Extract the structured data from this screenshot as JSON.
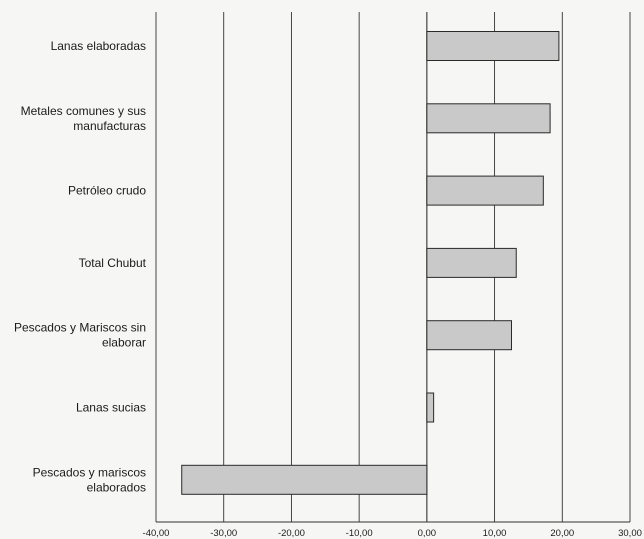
{
  "chart_data": {
    "type": "bar",
    "orientation": "horizontal",
    "categories": [
      [
        "Lanas elaboradas"
      ],
      [
        "Metales comunes y sus",
        "manufacturas"
      ],
      [
        "Petróleo crudo"
      ],
      [
        "Total Chubut"
      ],
      [
        "Pescados y Mariscos sin",
        "elaborar"
      ],
      [
        "Lanas sucias"
      ],
      [
        "Pescados y mariscos",
        "elaborados"
      ]
    ],
    "values": [
      19.5,
      18.2,
      17.2,
      13.2,
      12.5,
      1.0,
      -36.2
    ],
    "xlim": [
      -40,
      30
    ],
    "xticks": [
      -40,
      -30,
      -20,
      -10,
      0,
      10,
      20,
      30
    ],
    "xtick_labels": [
      "-40,00",
      "-30,00",
      "-20,00",
      "-10,00",
      "0,00",
      "10,00",
      "20,00",
      "30,00"
    ],
    "grid": "vertical",
    "colors": {
      "bar_fill": "#c9c9c9",
      "bar_stroke": "#2a2a2a",
      "grid": "#333333",
      "text": "#1b1b1b"
    }
  }
}
